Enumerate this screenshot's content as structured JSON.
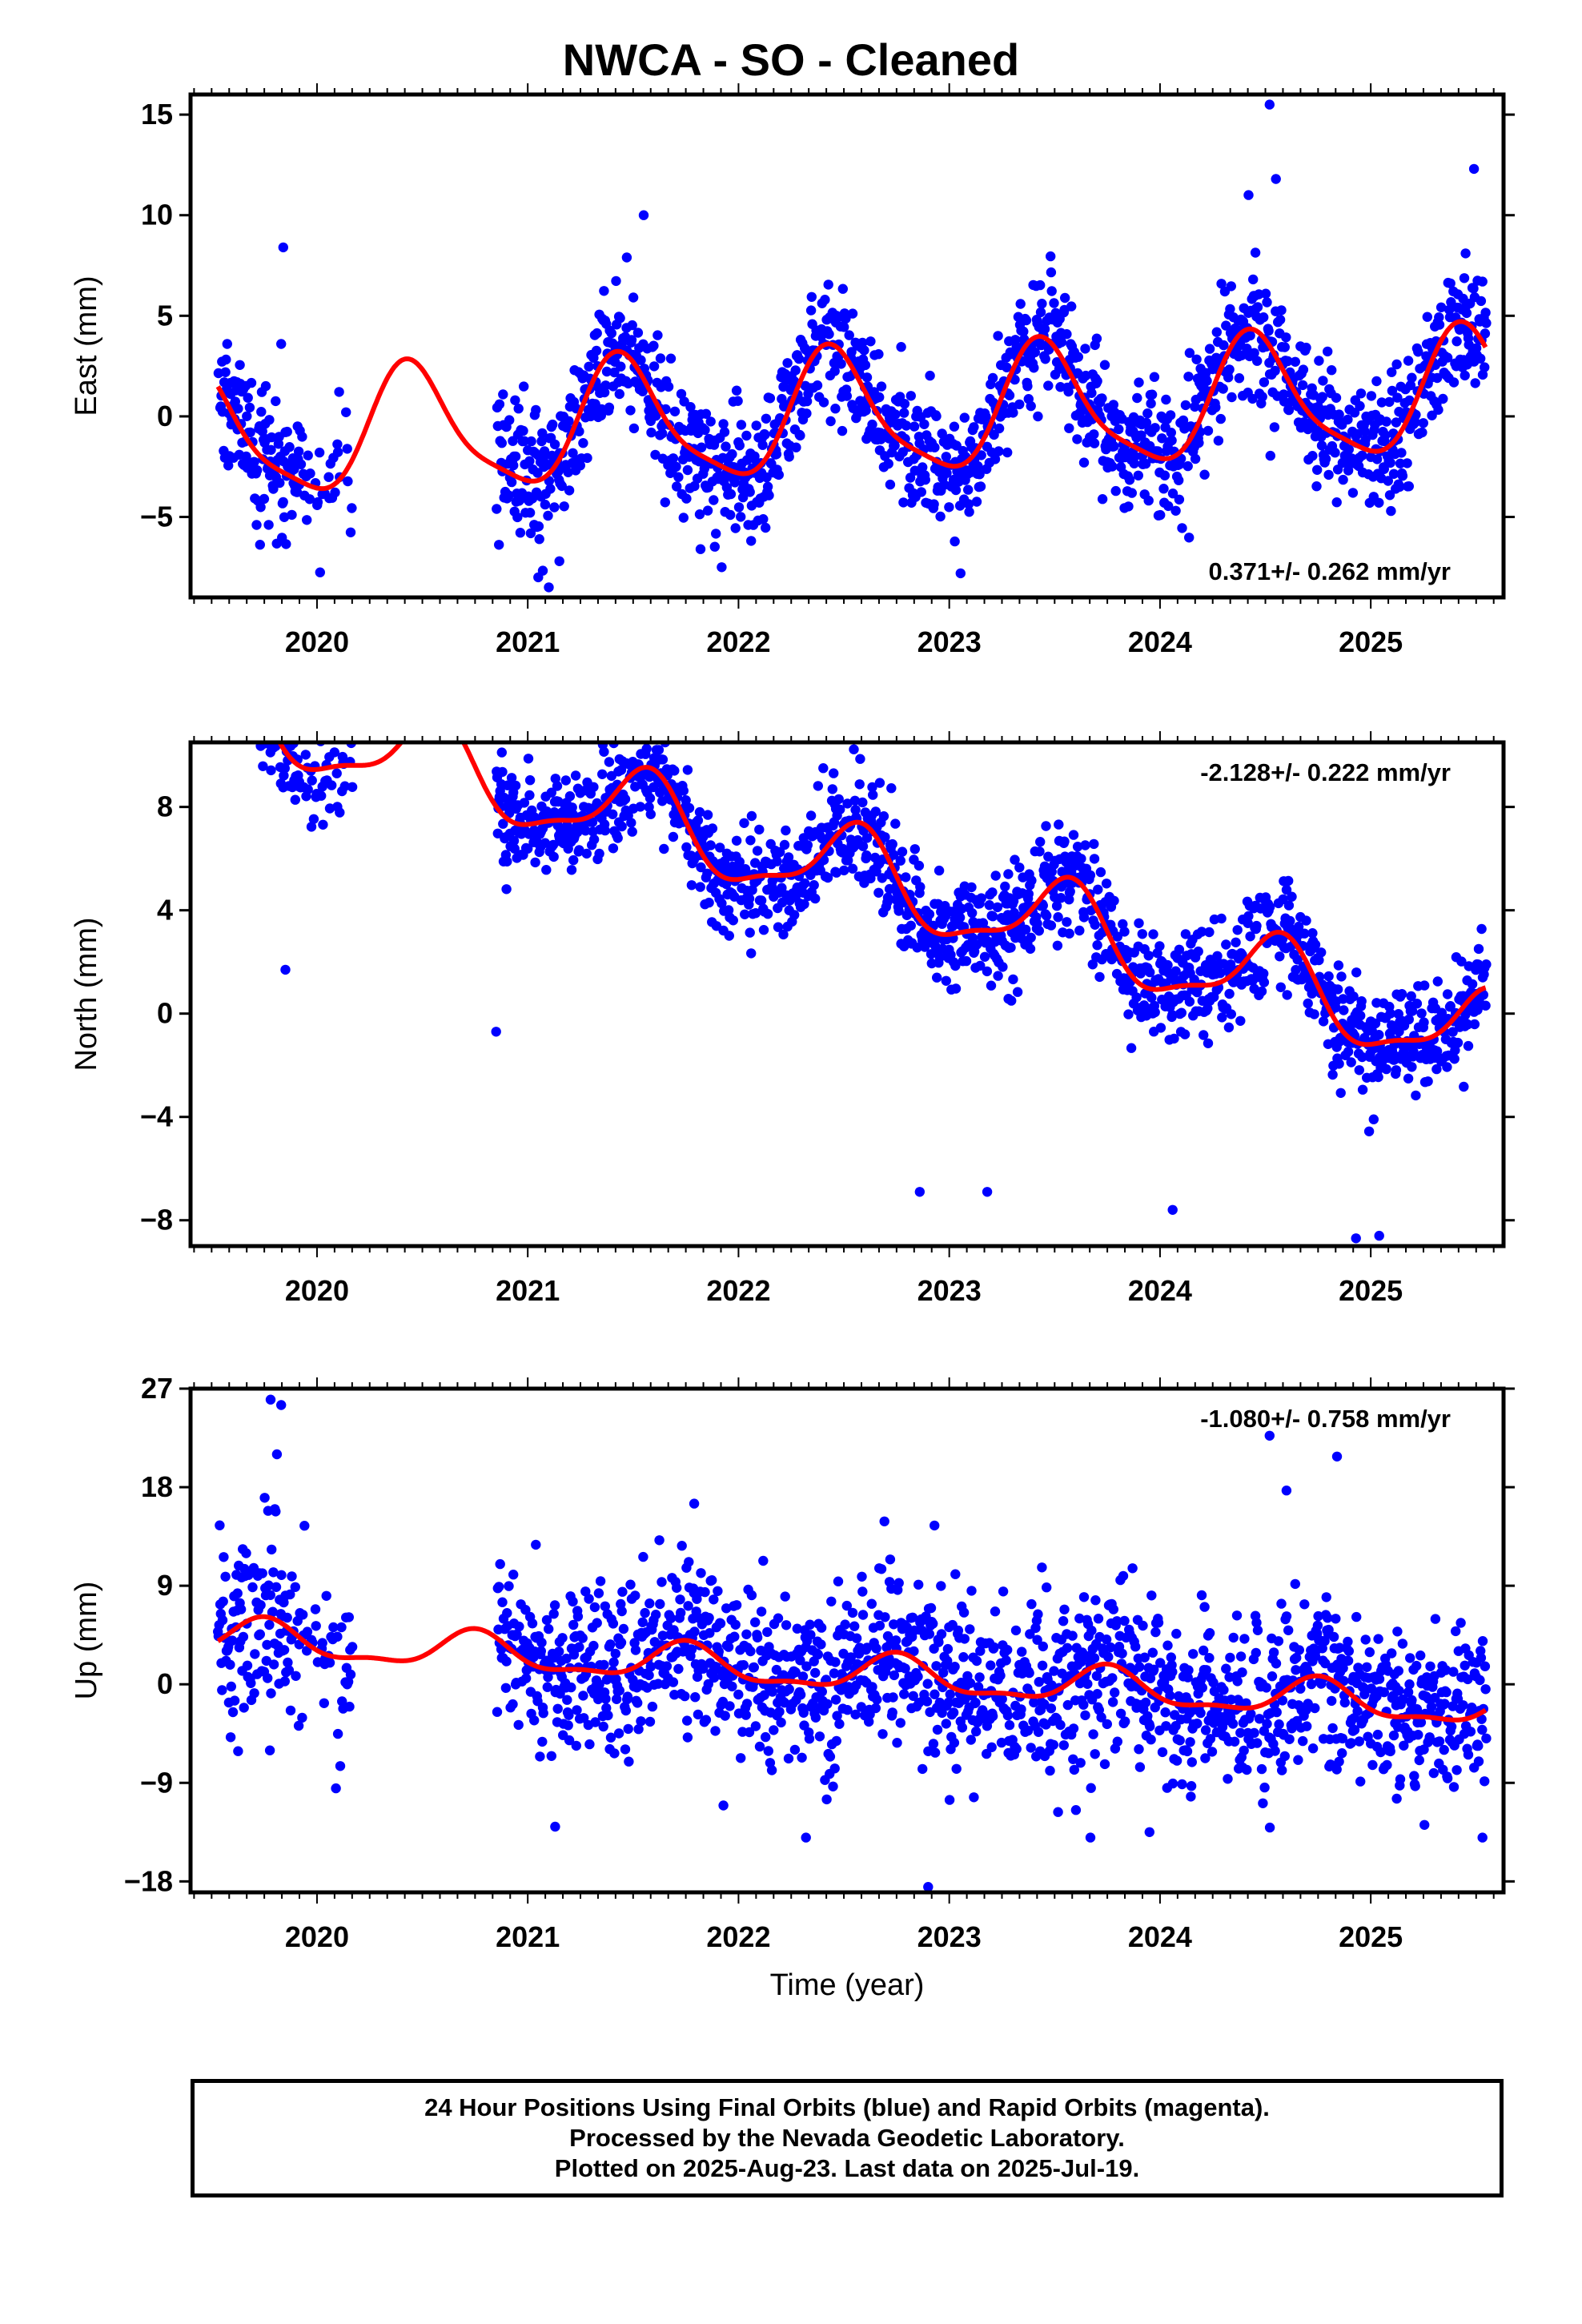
{
  "chart_data": [
    {
      "type": "scatter",
      "title": "NWCA  - SO - Cleaned",
      "ylabel": "East (mm)",
      "xlabel": "",
      "xlim": [
        2019.4,
        2025.63
      ],
      "ylim": [
        -9.0,
        16.0
      ],
      "yticks": [
        -5,
        0,
        5,
        10,
        15
      ],
      "xticks": [
        2020,
        2021,
        2022,
        2023,
        2024,
        2025
      ],
      "xtick_labels": [
        "2020",
        "2021",
        "2022",
        "2023",
        "2024",
        "2025"
      ],
      "rate_label": "0.371+/- 0.262 mm/yr",
      "rate_position": "bottom-right",
      "grid": false,
      "model": {
        "mean": 0.0,
        "trend": 0.371,
        "ann_amp": 3.0,
        "ann_phase": 2020.45,
        "semi_amp": 0.7,
        "semi_phase": 2020.4
      },
      "noise": 1.6,
      "outliers": [
        [
          2019.84,
          8.4
        ],
        [
          2019.83,
          3.6
        ],
        [
          2021.47,
          7.9
        ],
        [
          2021.55,
          10.0
        ],
        [
          2021.05,
          -8.0
        ],
        [
          2021.1,
          -8.5
        ],
        [
          2021.15,
          -7.2
        ],
        [
          2021.82,
          -6.6
        ],
        [
          2021.92,
          -7.5
        ],
        [
          2024.42,
          11.0
        ],
        [
          2024.52,
          15.5
        ],
        [
          2024.55,
          11.8
        ],
        [
          2025.45,
          8.1
        ],
        [
          2025.49,
          12.3
        ],
        [
          2025.53,
          6.7
        ]
      ],
      "series": [
        {
          "name": "Final Orbits",
          "color": "#0000ff",
          "kind": "points"
        },
        {
          "name": "Model fit",
          "color": "#ff0000",
          "kind": "line"
        }
      ]
    },
    {
      "type": "scatter",
      "title": "",
      "ylabel": "North (mm)",
      "xlabel": "",
      "xlim": [
        2019.4,
        2025.63
      ],
      "ylim": [
        -9.0,
        10.5
      ],
      "yticks": [
        -8,
        -4,
        0,
        4,
        8
      ],
      "xticks": [
        2020,
        2021,
        2022,
        2023,
        2024,
        2025
      ],
      "xtick_labels": [
        "2020",
        "2021",
        "2022",
        "2023",
        "2024",
        "2025"
      ],
      "rate_label": "-2.128+/- 0.222 mm/yr",
      "rate_position": "top-right",
      "grid": false,
      "model": {
        "mean": 5.5,
        "trend": -2.128,
        "ann_amp": 1.6,
        "ann_phase": 2020.55,
        "semi_amp": 0.5,
        "semi_phase": 2020.1
      },
      "noise": 1.0,
      "outliers": [
        [
          2019.85,
          1.7
        ],
        [
          2020.85,
          -0.7
        ],
        [
          2022.86,
          -6.9
        ],
        [
          2023.18,
          -6.9
        ],
        [
          2023.28,
          5.4
        ],
        [
          2023.57,
          3.1
        ],
        [
          2024.06,
          -7.6
        ],
        [
          2024.93,
          -8.7
        ],
        [
          2025.04,
          -8.6
        ]
      ],
      "series": [
        {
          "name": "Final Orbits",
          "color": "#0000ff",
          "kind": "points"
        },
        {
          "name": "Model fit",
          "color": "#ff0000",
          "kind": "line"
        }
      ]
    },
    {
      "type": "scatter",
      "title": "",
      "ylabel": "Up (mm)",
      "xlabel": "Time (year)",
      "xlim": [
        2019.4,
        2025.63
      ],
      "ylim": [
        -19.0,
        27.0
      ],
      "yticks": [
        -18,
        -9,
        0,
        9,
        18,
        27
      ],
      "xticks": [
        2020,
        2021,
        2022,
        2023,
        2024,
        2025
      ],
      "xtick_labels": [
        "2020",
        "2021",
        "2022",
        "2023",
        "2024",
        "2025"
      ],
      "rate_label": "-1.080+/- 0.758 mm/yr",
      "rate_position": "top-right",
      "grid": false,
      "model": {
        "mean": 1.0,
        "trend": -1.08,
        "ann_amp": 1.6,
        "ann_phase": 2020.75,
        "semi_amp": 0.6,
        "semi_phase": 2020.25
      },
      "noise": 4.0,
      "outliers": [
        [
          2019.78,
          26.0
        ],
        [
          2019.83,
          25.5
        ],
        [
          2019.81,
          21.0
        ],
        [
          2019.8,
          16.0
        ],
        [
          2020.09,
          -9.5
        ],
        [
          2021.13,
          -13.0
        ],
        [
          2022.32,
          -14.0
        ],
        [
          2022.9,
          -18.5
        ],
        [
          2023.67,
          -14.0
        ],
        [
          2023.95,
          -13.5
        ],
        [
          2024.52,
          22.7
        ],
        [
          2024.6,
          17.7
        ],
        [
          2024.84,
          20.8
        ],
        [
          2025.53,
          -14.0
        ],
        [
          2022.93,
          14.5
        ],
        [
          2021.79,
          16.5
        ]
      ],
      "series": [
        {
          "name": "Final Orbits",
          "color": "#0000ff",
          "kind": "points"
        },
        {
          "name": "Model fit",
          "color": "#ff0000",
          "kind": "line"
        }
      ]
    }
  ],
  "caption": {
    "line1": "24 Hour Positions Using Final Orbits (blue) and Rapid Orbits (magenta).",
    "line2": "Processed by the Nevada Geodetic Laboratory.",
    "line3": "Plotted on 2025-Aug-23. Last data on 2025-Jul-19."
  }
}
